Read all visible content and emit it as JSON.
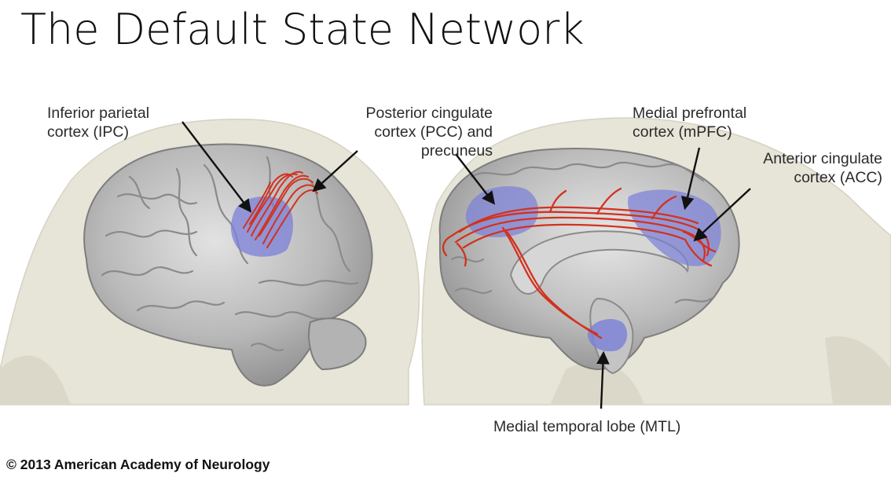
{
  "slide": {
    "title": "The Default State Network",
    "copyright": "© 2013 American  Academy of Neurology"
  },
  "labels": {
    "ipc": [
      "Inferior parietal",
      "cortex (IPC)"
    ],
    "pcc": [
      "Posterior cingulate",
      "cortex (PCC) and",
      "precuneus"
    ],
    "mpfc": [
      "Medial prefrontal",
      "cortex (mPFC)"
    ],
    "acc": [
      "Anterior cingulate",
      "cortex (ACC)"
    ],
    "mtl": "Medial temporal lobe (MTL)"
  },
  "colors": {
    "head": "#e6e3d6",
    "brain": "#bdbdbd",
    "region_highlight": "#7b7fd8",
    "fibers": "#d2321f",
    "arrow": "#111111"
  },
  "icons": {
    "ipc_arrow": "arrow-icon",
    "pcc_arrow": "arrow-icon",
    "mpfc_arrow": "arrow-icon",
    "acc_arrow": "arrow-icon",
    "mtl_arrow": "arrow-icon"
  }
}
